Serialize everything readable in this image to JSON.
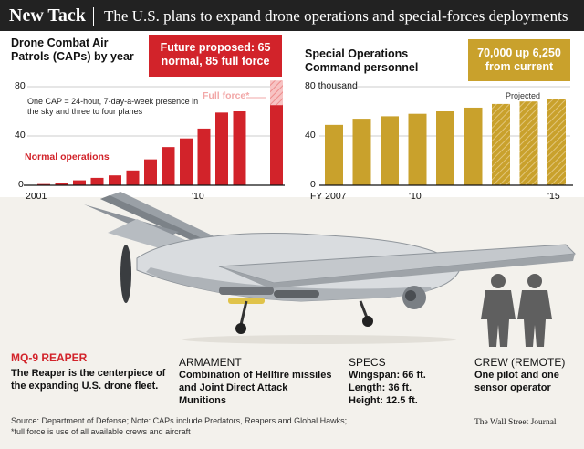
{
  "header": {
    "headline": "New Tack",
    "dek": "The U.S. plans to expand drone operations and special-forces deployments"
  },
  "colors": {
    "red": "#d2232a",
    "pink": "#f5b5b5",
    "gold": "#c9a12c",
    "gold_hatched": "#d9b758",
    "callout_gold": "#c9a12c"
  },
  "chart_data": [
    {
      "type": "bar",
      "title": "Drone Combat Air Patrols (CAPs) by year",
      "callout": "Future proposed: 65 normal, 85 full force",
      "note": "One CAP = 24-hour, 7-day-a-week presence in the sky and three to four planes",
      "x": [
        2001,
        2002,
        2003,
        2004,
        2005,
        2006,
        2007,
        2008,
        2009,
        2010,
        2011,
        2012,
        "Future"
      ],
      "values": [
        1,
        2,
        4,
        6,
        8,
        12,
        21,
        31,
        38,
        46,
        59,
        60,
        65
      ],
      "future_full_force": 85,
      "x_tick_labels": [
        "2001",
        "'10"
      ],
      "y_tick_labels": [
        "0",
        "40",
        "80"
      ],
      "ylim": [
        0,
        80
      ],
      "annotations": [
        "Normal operations",
        "Full force*"
      ],
      "grid": false
    },
    {
      "type": "bar",
      "title": "Special Operations Command personnel",
      "callout": "70,000 up 6,250 from current",
      "x": [
        2007,
        2008,
        2009,
        2010,
        2011,
        2012,
        2013,
        2014,
        2015
      ],
      "values": [
        49000,
        54000,
        56000,
        58000,
        60000,
        63000,
        66000,
        68000,
        70000
      ],
      "projected_from": 2013,
      "x_tick_labels": [
        "FY 2007",
        "'10",
        "'15"
      ],
      "y_tick_labels": [
        "0",
        "40",
        "80 thousand"
      ],
      "ylim": [
        0,
        80000
      ],
      "annotations": [
        "Projected"
      ],
      "grid": false
    }
  ],
  "sections": {
    "reaper": {
      "head": "MQ-9 REAPER",
      "body": "The Reaper is the centerpiece of the expanding U.S. drone fleet."
    },
    "armament": {
      "head": "ARMAMENT",
      "body": "Combination of Hellfire missiles and Joint Direct Attack Munitions"
    },
    "specs": {
      "head": "SPECS",
      "line1": "Wingspan: 66 ft.",
      "line2": "Length: 36 ft.",
      "line3": "Height: 12.5 ft."
    },
    "crew": {
      "head": "CREW (REMOTE)",
      "body": "One pilot and one sensor operator"
    }
  },
  "footer": {
    "source": "Source: Department of Defense; Note: CAPs include Predators, Reapers and Global Hawks;",
    "footnote": "*full force is use of all available crews and aircraft",
    "credit": "The Wall Street Journal"
  }
}
